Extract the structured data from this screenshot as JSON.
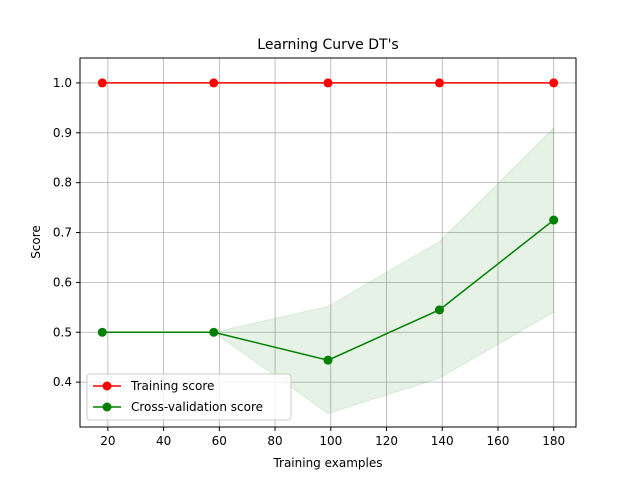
{
  "chart_data": {
    "type": "line",
    "title": "Learning Curve DT's",
    "xlabel": "Training examples",
    "ylabel": "Score",
    "x": [
      18,
      58,
      99,
      139,
      180
    ],
    "xlim": [
      10,
      188
    ],
    "ylim": [
      0.31,
      1.05
    ],
    "xticks": [
      20,
      40,
      60,
      80,
      100,
      120,
      140,
      160,
      180
    ],
    "yticks": [
      0.4,
      0.5,
      0.6,
      0.7,
      0.8,
      0.9,
      1.0
    ],
    "xtick_labels": [
      "20",
      "40",
      "60",
      "80",
      "100",
      "120",
      "140",
      "160",
      "180"
    ],
    "ytick_labels": [
      "0.4",
      "0.5",
      "0.6",
      "0.7",
      "0.8",
      "0.9",
      "1.0"
    ],
    "grid": true,
    "legend_position": "lower-left",
    "series": [
      {
        "name": "Training score",
        "color": "#ff0000",
        "values": [
          1.0,
          1.0,
          1.0,
          1.0,
          1.0
        ],
        "band_lower": [
          1.0,
          1.0,
          1.0,
          1.0,
          1.0
        ],
        "band_upper": [
          1.0,
          1.0,
          1.0,
          1.0,
          1.0
        ]
      },
      {
        "name": "Cross-validation score",
        "color": "#008000",
        "values": [
          0.5,
          0.5,
          0.444,
          0.545,
          0.725
        ],
        "band_lower": [
          0.5,
          0.5,
          0.337,
          0.408,
          0.54
        ],
        "band_upper": [
          0.5,
          0.5,
          0.552,
          0.682,
          0.91
        ]
      }
    ]
  }
}
